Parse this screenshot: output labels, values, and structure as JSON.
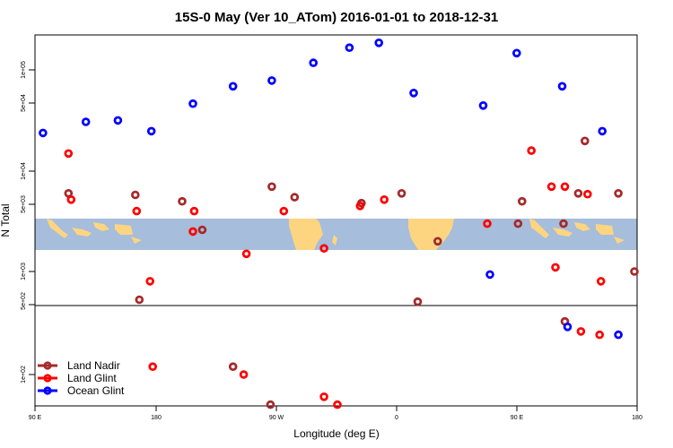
{
  "chart_data": {
    "type": "scatter",
    "title": "15S-0 May (Ver 10_ATom)   2016-01-01 to 2018-12-31",
    "xlabel": "Longitude (deg E)",
    "ylabel": "N Total",
    "x_tick_labels": [
      "90 E",
      "180",
      "90 W",
      "0",
      "90 E",
      "180"
    ],
    "upper_y_tick_labels": [
      "1e+05",
      "5e+04",
      "1e+04",
      "5e+03",
      "1e+03",
      "5e+02"
    ],
    "lower_y_tick_labels": [
      "5e+02",
      "1e+02"
    ],
    "x_axis": "longitude, 90 E east through 180 and 0 to 180 (data in deg E, 90 to 540)",
    "upper_panel": {
      "ylim": [
        500,
        200000
      ],
      "scale": "log",
      "map_band": "world map strip, 15S to 0",
      "series": [
        {
          "name": "Land Nadir",
          "color": "#a52a2a",
          "points": [
            [
              115,
              6000
            ],
            [
              165,
              5800
            ],
            [
              200,
              5000
            ],
            [
              215,
              2600
            ],
            [
              267,
              7000
            ],
            [
              284,
              5500
            ],
            [
              334,
              4800
            ],
            [
              364,
              6000
            ],
            [
              376,
              500
            ],
            [
              391,
              2000
            ],
            [
              451,
              3000
            ],
            [
              454,
              5000
            ],
            [
              485,
              3000
            ],
            [
              496,
              6000
            ],
            [
              501,
              20000
            ],
            [
              526,
              6000
            ],
            [
              538,
              1000
            ],
            [
              547,
              800
            ],
            [
              637,
              5000
            ],
            [
              659,
              800
            ],
            [
              678,
              500
            ],
            [
              750,
              5300
            ]
          ]
        },
        {
          "name": "Land Glint",
          "color": "#ff0000",
          "points": [
            [
              115,
              15000
            ],
            [
              117,
              5200
            ],
            [
              166,
              4000
            ],
            [
              176,
              800
            ],
            [
              208,
              2500
            ],
            [
              209,
              4000
            ],
            [
              248,
              1500
            ],
            [
              276,
              4000
            ],
            [
              306,
              1700
            ],
            [
              333,
              4500
            ],
            [
              351,
              5200
            ],
            [
              428,
              3000
            ],
            [
              461,
              16000
            ],
            [
              476,
              7000
            ],
            [
              479,
              1100
            ],
            [
              486,
              7000
            ],
            [
              503,
              5900
            ],
            [
              513,
              800
            ],
            [
              628,
              4200
            ],
            [
              634,
              800
            ],
            [
              664,
              600
            ],
            [
              672,
              4200
            ],
            [
              713,
              1600
            ]
          ]
        },
        {
          "name": "Ocean Glint",
          "color": "#0000ff",
          "points": [
            [
              96,
              24000
            ],
            [
              128,
              31000
            ],
            [
              152,
              32000
            ],
            [
              177,
              25000
            ],
            [
              208,
              47000
            ],
            [
              238,
              70000
            ],
            [
              267,
              80000
            ],
            [
              298,
              120000
            ],
            [
              325,
              170000
            ],
            [
              347,
              190000
            ],
            [
              373,
              60000
            ],
            [
              425,
              45000
            ],
            [
              450,
              150000
            ],
            [
              484,
              70000
            ],
            [
              514,
              25000
            ],
            [
              542,
              49000
            ],
            [
              566,
              33000
            ],
            [
              591,
              28000
            ],
            [
              616,
              25000
            ],
            [
              642,
              32000
            ],
            [
              666,
              33000
            ],
            [
              690,
              25000
            ],
            [
              713,
              42000
            ],
            [
              738,
              72000
            ],
            [
              763,
              200
            ],
            [
              813,
              26000
            ],
            [
              852,
              26000
            ],
            [
              880,
              28000
            ]
          ]
        }
      ]
    },
    "lower_panel": {
      "ylim": [
        50,
        500
      ],
      "scale": "log",
      "series": [
        {
          "name": "Land Nadir",
          "color": "#a52a2a",
          "points": [
            [
              30,
              100
            ],
            [
              168,
              560
            ],
            [
              238,
              120
            ],
            [
              266,
              50
            ],
            [
              486,
              340
            ],
            [
              569,
              160
            ],
            [
              628,
              570
            ],
            [
              672,
              600
            ],
            [
              750,
              190
            ]
          ]
        },
        {
          "name": "Land Glint",
          "color": "#ff0000",
          "points": [
            [
              36,
              580
            ],
            [
              178,
              120
            ],
            [
              246,
              100
            ],
            [
              306,
              60
            ],
            [
              316,
              50
            ],
            [
              498,
              270
            ],
            [
              512,
              250
            ],
            [
              556,
              600
            ],
            [
              630,
              150
            ],
            [
              750,
              190
            ]
          ]
        },
        {
          "name": "Ocean Glint",
          "color": "#0000ff",
          "points": [
            [
              430,
              1000
            ],
            [
              488,
              300
            ],
            [
              526,
              250
            ],
            [
              546,
              150
            ]
          ]
        }
      ]
    },
    "legend": {
      "position": "bottom-left",
      "entries": [
        {
          "label": "Land Nadir",
          "color": "#a52a2a"
        },
        {
          "label": "Land Glint",
          "color": "#ff0000"
        },
        {
          "label": "Ocean Glint",
          "color": "#0000ff"
        }
      ]
    },
    "grid": false
  }
}
